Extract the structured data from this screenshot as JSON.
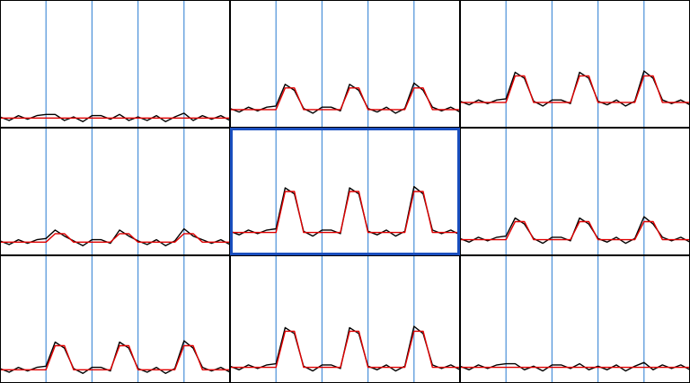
{
  "chart_data": [
    {
      "type": "line",
      "xlim": [
        0,
        100
      ],
      "ylim": [
        0,
        1
      ],
      "vlines": [
        20,
        40,
        60,
        80
      ],
      "vline_color": "#4a90d9",
      "highlight": false,
      "x": [
        0,
        4,
        8,
        12,
        16,
        20,
        24,
        28,
        32,
        36,
        40,
        44,
        48,
        52,
        56,
        60,
        64,
        68,
        72,
        76,
        80,
        84,
        88,
        92,
        96,
        100
      ],
      "series": [
        {
          "color": "#000000",
          "values": [
            0.06,
            0.03,
            0.07,
            0.04,
            0.07,
            0.08,
            0.08,
            0.03,
            0.06,
            0.02,
            0.07,
            0.07,
            0.04,
            0.08,
            0.03,
            0.06,
            0.03,
            0.07,
            0.02,
            0.06,
            0.09,
            0.03,
            0.07,
            0.04,
            0.07,
            0.03
          ]
        },
        {
          "color": "#e00000",
          "values": [
            0.05,
            0.05,
            0.05,
            0.05,
            0.05,
            0.05,
            0.05,
            0.05,
            0.05,
            0.05,
            0.05,
            0.05,
            0.05,
            0.05,
            0.05,
            0.05,
            0.05,
            0.05,
            0.05,
            0.05,
            0.05,
            0.05,
            0.05,
            0.05,
            0.05,
            0.05
          ]
        }
      ]
    },
    {
      "type": "line",
      "xlim": [
        0,
        100
      ],
      "ylim": [
        0,
        1
      ],
      "vlines": [
        20,
        40,
        60,
        80
      ],
      "vline_color": "#4a90d9",
      "highlight": false,
      "x": [
        0,
        4,
        8,
        12,
        16,
        20,
        24,
        28,
        32,
        36,
        40,
        44,
        48,
        52,
        56,
        60,
        64,
        68,
        72,
        76,
        80,
        84,
        88,
        92,
        96,
        100
      ],
      "series": [
        {
          "color": "#000000",
          "values": [
            0.13,
            0.1,
            0.14,
            0.11,
            0.14,
            0.15,
            0.33,
            0.28,
            0.13,
            0.09,
            0.14,
            0.14,
            0.11,
            0.33,
            0.28,
            0.13,
            0.1,
            0.14,
            0.09,
            0.13,
            0.34,
            0.28,
            0.14,
            0.11,
            0.14,
            0.1
          ]
        },
        {
          "color": "#e00000",
          "values": [
            0.12,
            0.12,
            0.12,
            0.12,
            0.12,
            0.12,
            0.3,
            0.3,
            0.12,
            0.12,
            0.12,
            0.12,
            0.12,
            0.3,
            0.3,
            0.12,
            0.12,
            0.12,
            0.12,
            0.12,
            0.3,
            0.3,
            0.12,
            0.12,
            0.12,
            0.12
          ]
        }
      ]
    },
    {
      "type": "line",
      "xlim": [
        0,
        100
      ],
      "ylim": [
        0,
        1
      ],
      "vlines": [
        20,
        40,
        60,
        80
      ],
      "vline_color": "#4a90d9",
      "highlight": false,
      "x": [
        0,
        4,
        8,
        12,
        16,
        20,
        24,
        28,
        32,
        36,
        40,
        44,
        48,
        52,
        56,
        60,
        64,
        68,
        72,
        76,
        80,
        84,
        88,
        92,
        96,
        100
      ],
      "series": [
        {
          "color": "#000000",
          "values": [
            0.19,
            0.16,
            0.2,
            0.17,
            0.2,
            0.21,
            0.43,
            0.38,
            0.19,
            0.15,
            0.2,
            0.2,
            0.17,
            0.43,
            0.38,
            0.19,
            0.16,
            0.2,
            0.15,
            0.19,
            0.44,
            0.38,
            0.2,
            0.17,
            0.2,
            0.16
          ]
        },
        {
          "color": "#e00000",
          "values": [
            0.18,
            0.18,
            0.18,
            0.18,
            0.18,
            0.18,
            0.4,
            0.4,
            0.18,
            0.18,
            0.18,
            0.18,
            0.18,
            0.4,
            0.4,
            0.18,
            0.18,
            0.18,
            0.18,
            0.18,
            0.4,
            0.4,
            0.18,
            0.18,
            0.18,
            0.18
          ]
        }
      ]
    },
    {
      "type": "line",
      "xlim": [
        0,
        100
      ],
      "ylim": [
        0,
        1
      ],
      "vlines": [
        20,
        40,
        60,
        80
      ],
      "vline_color": "#4a90d9",
      "highlight": false,
      "x": [
        0,
        4,
        8,
        12,
        16,
        20,
        24,
        28,
        32,
        36,
        40,
        44,
        48,
        52,
        56,
        60,
        64,
        68,
        72,
        76,
        80,
        84,
        88,
        92,
        96,
        100
      ],
      "series": [
        {
          "color": "#000000",
          "values": [
            0.09,
            0.06,
            0.1,
            0.07,
            0.1,
            0.11,
            0.18,
            0.13,
            0.09,
            0.05,
            0.1,
            0.1,
            0.07,
            0.18,
            0.13,
            0.09,
            0.06,
            0.1,
            0.05,
            0.09,
            0.19,
            0.13,
            0.1,
            0.07,
            0.1,
            0.06
          ]
        },
        {
          "color": "#e00000",
          "values": [
            0.08,
            0.08,
            0.08,
            0.08,
            0.08,
            0.08,
            0.15,
            0.15,
            0.08,
            0.08,
            0.08,
            0.08,
            0.08,
            0.15,
            0.15,
            0.08,
            0.08,
            0.08,
            0.08,
            0.08,
            0.15,
            0.15,
            0.08,
            0.08,
            0.08,
            0.08
          ]
        }
      ]
    },
    {
      "type": "line",
      "xlim": [
        0,
        100
      ],
      "ylim": [
        0,
        1
      ],
      "vlines": [
        20,
        40,
        60,
        80
      ],
      "vline_color": "#4a90d9",
      "highlight": true,
      "highlight_color": "#1a4fbf",
      "x": [
        0,
        4,
        8,
        12,
        16,
        20,
        24,
        28,
        32,
        36,
        40,
        44,
        48,
        52,
        56,
        60,
        64,
        68,
        72,
        76,
        80,
        84,
        88,
        92,
        96,
        100
      ],
      "series": [
        {
          "color": "#000000",
          "values": [
            0.17,
            0.14,
            0.18,
            0.15,
            0.18,
            0.19,
            0.53,
            0.48,
            0.17,
            0.13,
            0.18,
            0.18,
            0.15,
            0.53,
            0.48,
            0.17,
            0.14,
            0.18,
            0.13,
            0.17,
            0.54,
            0.48,
            0.18,
            0.15,
            0.18,
            0.14
          ]
        },
        {
          "color": "#e00000",
          "values": [
            0.16,
            0.16,
            0.16,
            0.16,
            0.16,
            0.16,
            0.5,
            0.5,
            0.16,
            0.16,
            0.16,
            0.16,
            0.16,
            0.5,
            0.5,
            0.16,
            0.16,
            0.16,
            0.16,
            0.16,
            0.5,
            0.5,
            0.16,
            0.16,
            0.16,
            0.16
          ]
        }
      ]
    },
    {
      "type": "line",
      "xlim": [
        0,
        100
      ],
      "ylim": [
        0,
        1
      ],
      "vlines": [
        20,
        40,
        60,
        80
      ],
      "vline_color": "#4a90d9",
      "highlight": false,
      "x": [
        0,
        4,
        8,
        12,
        16,
        20,
        24,
        28,
        32,
        36,
        40,
        44,
        48,
        52,
        56,
        60,
        64,
        68,
        72,
        76,
        80,
        84,
        88,
        92,
        96,
        100
      ],
      "series": [
        {
          "color": "#000000",
          "values": [
            0.11,
            0.08,
            0.12,
            0.09,
            0.12,
            0.13,
            0.28,
            0.23,
            0.11,
            0.07,
            0.12,
            0.12,
            0.09,
            0.28,
            0.23,
            0.11,
            0.08,
            0.12,
            0.07,
            0.11,
            0.29,
            0.23,
            0.12,
            0.09,
            0.12,
            0.08
          ]
        },
        {
          "color": "#e00000",
          "values": [
            0.1,
            0.1,
            0.1,
            0.1,
            0.1,
            0.1,
            0.25,
            0.25,
            0.1,
            0.1,
            0.1,
            0.1,
            0.1,
            0.25,
            0.25,
            0.1,
            0.1,
            0.1,
            0.1,
            0.1,
            0.25,
            0.25,
            0.1,
            0.1,
            0.1,
            0.1
          ]
        }
      ]
    },
    {
      "type": "line",
      "xlim": [
        0,
        100
      ],
      "ylim": [
        0,
        1
      ],
      "vlines": [
        20,
        40,
        60,
        80
      ],
      "vline_color": "#4a90d9",
      "highlight": false,
      "x": [
        0,
        4,
        8,
        12,
        16,
        20,
        24,
        28,
        32,
        36,
        40,
        44,
        48,
        52,
        56,
        60,
        64,
        68,
        72,
        76,
        80,
        84,
        88,
        92,
        96,
        100
      ],
      "series": [
        {
          "color": "#000000",
          "values": [
            0.09,
            0.06,
            0.1,
            0.07,
            0.1,
            0.11,
            0.31,
            0.26,
            0.09,
            0.05,
            0.1,
            0.1,
            0.07,
            0.31,
            0.26,
            0.09,
            0.06,
            0.1,
            0.05,
            0.09,
            0.32,
            0.26,
            0.1,
            0.07,
            0.1,
            0.06
          ]
        },
        {
          "color": "#e00000",
          "values": [
            0.08,
            0.08,
            0.08,
            0.08,
            0.08,
            0.08,
            0.28,
            0.28,
            0.08,
            0.08,
            0.08,
            0.08,
            0.08,
            0.28,
            0.28,
            0.08,
            0.08,
            0.08,
            0.08,
            0.08,
            0.28,
            0.28,
            0.08,
            0.08,
            0.08,
            0.08
          ]
        }
      ]
    },
    {
      "type": "line",
      "xlim": [
        0,
        100
      ],
      "ylim": [
        0,
        1
      ],
      "vlines": [
        20,
        40,
        60,
        80
      ],
      "vline_color": "#4a90d9",
      "highlight": false,
      "x": [
        0,
        4,
        8,
        12,
        16,
        20,
        24,
        28,
        32,
        36,
        40,
        44,
        48,
        52,
        56,
        60,
        64,
        68,
        72,
        76,
        80,
        84,
        88,
        92,
        96,
        100
      ],
      "series": [
        {
          "color": "#000000",
          "values": [
            0.11,
            0.08,
            0.12,
            0.09,
            0.12,
            0.13,
            0.43,
            0.38,
            0.11,
            0.07,
            0.12,
            0.12,
            0.09,
            0.43,
            0.38,
            0.11,
            0.08,
            0.12,
            0.07,
            0.11,
            0.44,
            0.38,
            0.12,
            0.09,
            0.12,
            0.08
          ]
        },
        {
          "color": "#e00000",
          "values": [
            0.1,
            0.1,
            0.1,
            0.1,
            0.1,
            0.1,
            0.4,
            0.4,
            0.1,
            0.1,
            0.1,
            0.1,
            0.1,
            0.4,
            0.4,
            0.1,
            0.1,
            0.1,
            0.1,
            0.1,
            0.4,
            0.4,
            0.1,
            0.1,
            0.1,
            0.1
          ]
        }
      ]
    },
    {
      "type": "line",
      "xlim": [
        0,
        100
      ],
      "ylim": [
        0,
        1
      ],
      "vlines": [
        20,
        40,
        60,
        80
      ],
      "vline_color": "#4a90d9",
      "highlight": false,
      "x": [
        0,
        4,
        8,
        12,
        16,
        20,
        24,
        28,
        32,
        36,
        40,
        44,
        48,
        52,
        56,
        60,
        64,
        68,
        72,
        76,
        80,
        84,
        88,
        92,
        96,
        100
      ],
      "series": [
        {
          "color": "#000000",
          "values": [
            0.11,
            0.08,
            0.12,
            0.09,
            0.12,
            0.13,
            0.13,
            0.08,
            0.11,
            0.07,
            0.12,
            0.12,
            0.09,
            0.13,
            0.08,
            0.11,
            0.08,
            0.12,
            0.07,
            0.11,
            0.14,
            0.08,
            0.12,
            0.09,
            0.12,
            0.08
          ]
        },
        {
          "color": "#e00000",
          "values": [
            0.1,
            0.1,
            0.1,
            0.1,
            0.1,
            0.1,
            0.1,
            0.1,
            0.1,
            0.1,
            0.1,
            0.1,
            0.1,
            0.1,
            0.1,
            0.1,
            0.1,
            0.1,
            0.1,
            0.1,
            0.1,
            0.1,
            0.1,
            0.1,
            0.1,
            0.1
          ]
        }
      ]
    }
  ]
}
